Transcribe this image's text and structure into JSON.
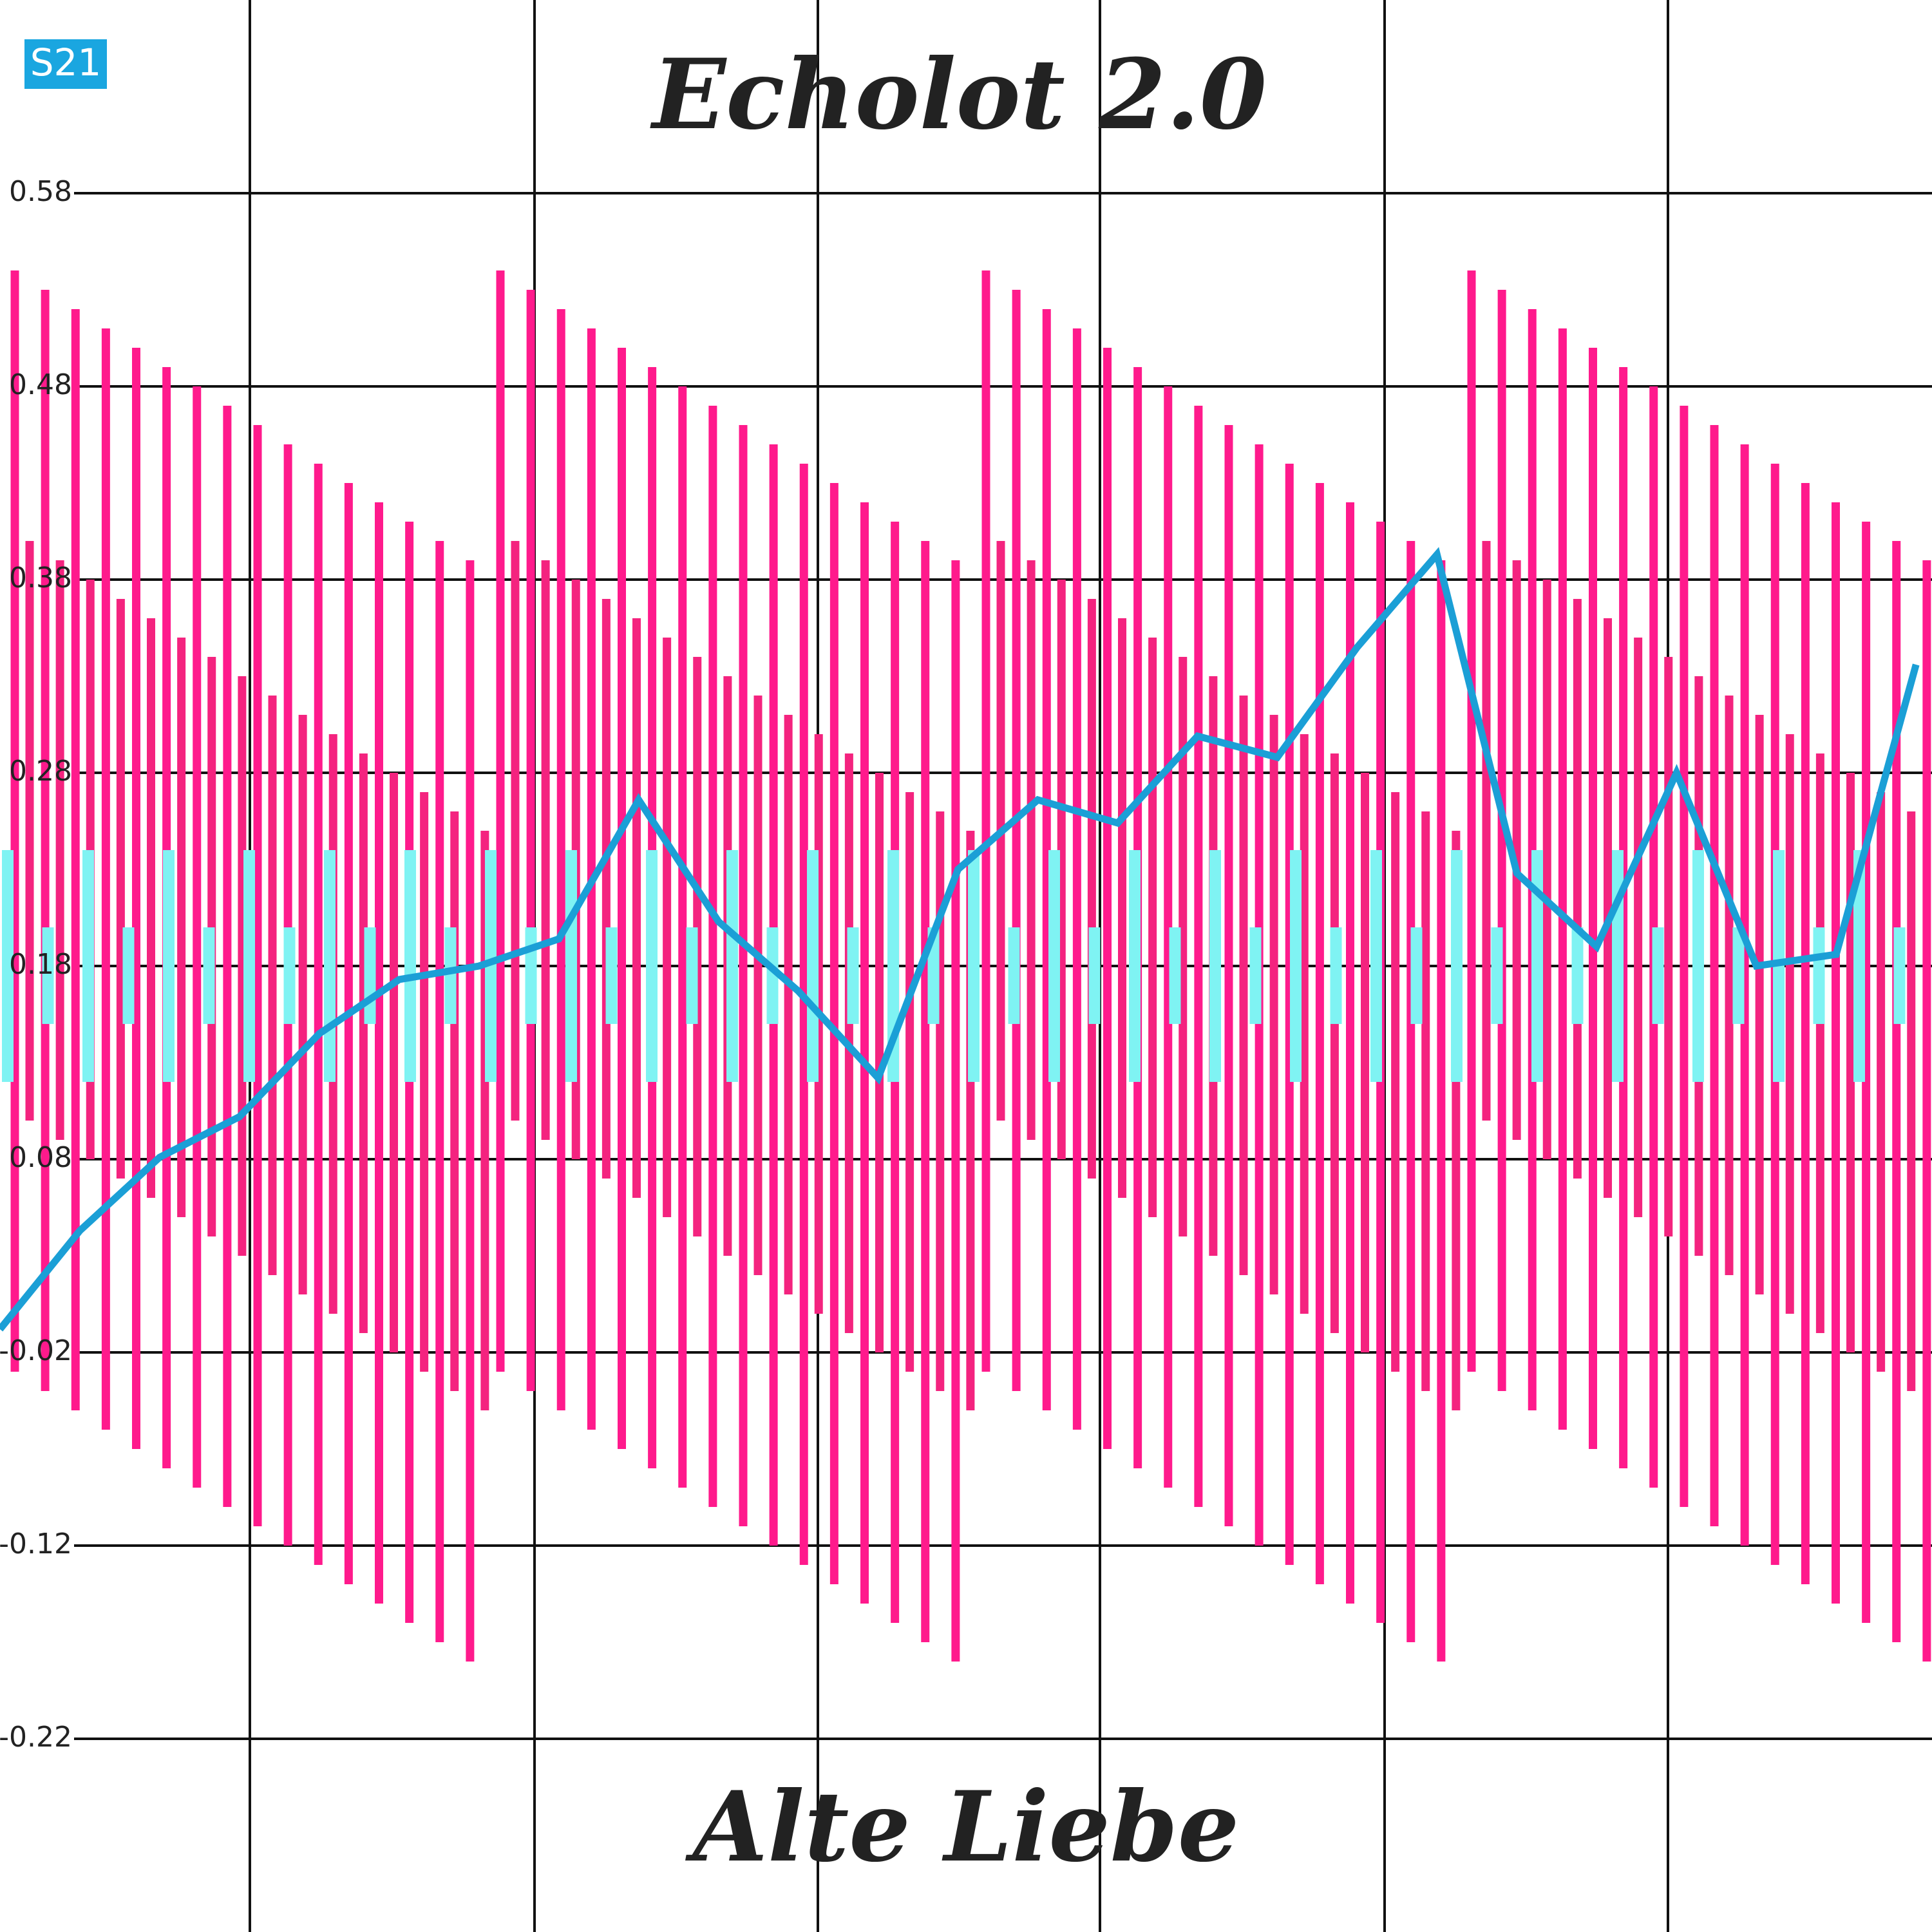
{
  "badge": "S21",
  "chart_data": {
    "type": "combo",
    "title": "Echolot 2.0",
    "subtitle": "Alte Liebe",
    "ylim": [
      -0.32,
      0.68
    ],
    "yticks": [
      0.58,
      0.48,
      0.38,
      0.28,
      0.18,
      0.08,
      -0.02,
      -0.12,
      -0.22
    ],
    "grid": true,
    "series": [
      {
        "type": "range",
        "color": "#ff1a8c",
        "high": [
          0.54,
          0.53,
          0.52,
          0.51,
          0.5,
          0.49,
          0.48,
          0.47,
          0.46,
          0.45,
          0.44,
          0.43,
          0.42,
          0.41,
          0.4,
          0.39,
          0.54,
          0.53,
          0.52,
          0.51,
          0.5,
          0.49,
          0.48,
          0.47,
          0.46,
          0.45,
          0.44,
          0.43,
          0.42,
          0.41,
          0.4,
          0.39,
          0.54,
          0.53,
          0.52,
          0.51,
          0.5,
          0.49,
          0.48,
          0.47,
          0.46,
          0.45,
          0.44,
          0.43,
          0.42,
          0.41,
          0.4,
          0.39,
          0.54,
          0.53,
          0.52,
          0.51,
          0.5,
          0.49,
          0.48,
          0.47,
          0.46,
          0.45,
          0.44,
          0.43,
          0.42,
          0.41,
          0.4,
          0.39
        ],
        "low": [
          -0.03,
          -0.04,
          -0.05,
          -0.06,
          -0.07,
          -0.08,
          -0.09,
          -0.1,
          -0.11,
          -0.12,
          -0.13,
          -0.14,
          -0.15,
          -0.16,
          -0.17,
          -0.18,
          -0.03,
          -0.04,
          -0.05,
          -0.06,
          -0.07,
          -0.08,
          -0.09,
          -0.1,
          -0.11,
          -0.12,
          -0.13,
          -0.14,
          -0.15,
          -0.16,
          -0.17,
          -0.18,
          -0.03,
          -0.04,
          -0.05,
          -0.06,
          -0.07,
          -0.08,
          -0.09,
          -0.1,
          -0.11,
          -0.12,
          -0.13,
          -0.14,
          -0.15,
          -0.16,
          -0.17,
          -0.18,
          -0.03,
          -0.04,
          -0.05,
          -0.06,
          -0.07,
          -0.08,
          -0.09,
          -0.1,
          -0.11,
          -0.12,
          -0.13,
          -0.14,
          -0.15,
          -0.16,
          -0.17,
          -0.18
        ]
      },
      {
        "type": "range",
        "color": "#f4237f",
        "high": [
          0.4,
          0.39,
          0.38,
          0.37,
          0.36,
          0.35,
          0.34,
          0.33,
          0.32,
          0.31,
          0.3,
          0.29,
          0.28,
          0.27,
          0.26,
          0.25,
          0.4,
          0.39,
          0.38,
          0.37,
          0.36,
          0.35,
          0.34,
          0.33,
          0.32,
          0.31,
          0.3,
          0.29,
          0.28,
          0.27,
          0.26,
          0.25,
          0.4,
          0.39,
          0.38,
          0.37,
          0.36,
          0.35,
          0.34,
          0.33,
          0.32,
          0.31,
          0.3,
          0.29,
          0.28,
          0.27,
          0.26,
          0.25,
          0.4,
          0.39,
          0.38,
          0.37,
          0.36,
          0.35,
          0.34,
          0.33,
          0.32,
          0.31,
          0.3,
          0.29,
          0.28,
          0.27,
          0.26,
          0.25
        ],
        "low": [
          0.1,
          0.09,
          0.08,
          0.07,
          0.06,
          0.05,
          0.04,
          0.03,
          0.02,
          0.01,
          0,
          -0.01,
          -0.02,
          -0.03,
          -0.04,
          -0.05,
          0.1,
          0.09,
          0.08,
          0.07,
          0.06,
          0.05,
          0.04,
          0.03,
          0.02,
          0.01,
          0,
          -0.01,
          -0.02,
          -0.03,
          -0.04,
          -0.05,
          0.1,
          0.09,
          0.08,
          0.07,
          0.06,
          0.05,
          0.04,
          0.03,
          0.02,
          0.01,
          0,
          -0.01,
          -0.02,
          -0.03,
          -0.04,
          -0.05,
          0.1,
          0.09,
          0.08,
          0.07,
          0.06,
          0.05,
          0.04,
          0.03,
          0.02,
          0.01,
          0,
          -0.01,
          -0.02,
          -0.03,
          -0.04,
          -0.05
        ]
      },
      {
        "type": "range",
        "color": "#7ff3f3",
        "high": [
          0.24,
          0.2,
          0.24,
          0.2,
          0.24,
          0.2,
          0.24,
          0.2,
          0.24,
          0.2,
          0.24,
          0.2,
          0.24,
          0.2,
          0.24,
          0.2,
          0.24,
          0.2,
          0.24,
          0.2,
          0.24,
          0.2,
          0.24,
          0.2,
          0.24,
          0.2,
          0.24,
          0.2,
          0.24,
          0.2,
          0.24,
          0.2,
          0.24,
          0.2,
          0.24,
          0.2,
          0.24,
          0.2,
          0.24,
          0.2,
          0.24,
          0.2,
          0.24,
          0.2,
          0.24,
          0.2,
          0.24,
          0.2
        ],
        "low": [
          0.12,
          0.15,
          0.12,
          0.15,
          0.12,
          0.15,
          0.12,
          0.15,
          0.12,
          0.15,
          0.12,
          0.15,
          0.12,
          0.15,
          0.12,
          0.15,
          0.12,
          0.15,
          0.12,
          0.15,
          0.12,
          0.15,
          0.12,
          0.15,
          0.12,
          0.15,
          0.12,
          0.15,
          0.12,
          0.15,
          0.12,
          0.15,
          0.12,
          0.15,
          0.12,
          0.15,
          0.12,
          0.15,
          0.12,
          0.15,
          0.12,
          0.15,
          0.12,
          0.15,
          0.12,
          0.15,
          0.12,
          0.15
        ]
      },
      {
        "type": "line",
        "color": "#1b9fd6",
        "values": [
          -0.008,
          0.043,
          0.081,
          0.102,
          0.145,
          0.173,
          0.18,
          0.194,
          0.266,
          0.203,
          0.167,
          0.122,
          0.23,
          0.266,
          0.254,
          0.299,
          0.288,
          0.345,
          0.393,
          0.228,
          0.19,
          0.28,
          0.18,
          0.186,
          0.336
        ]
      }
    ]
  }
}
